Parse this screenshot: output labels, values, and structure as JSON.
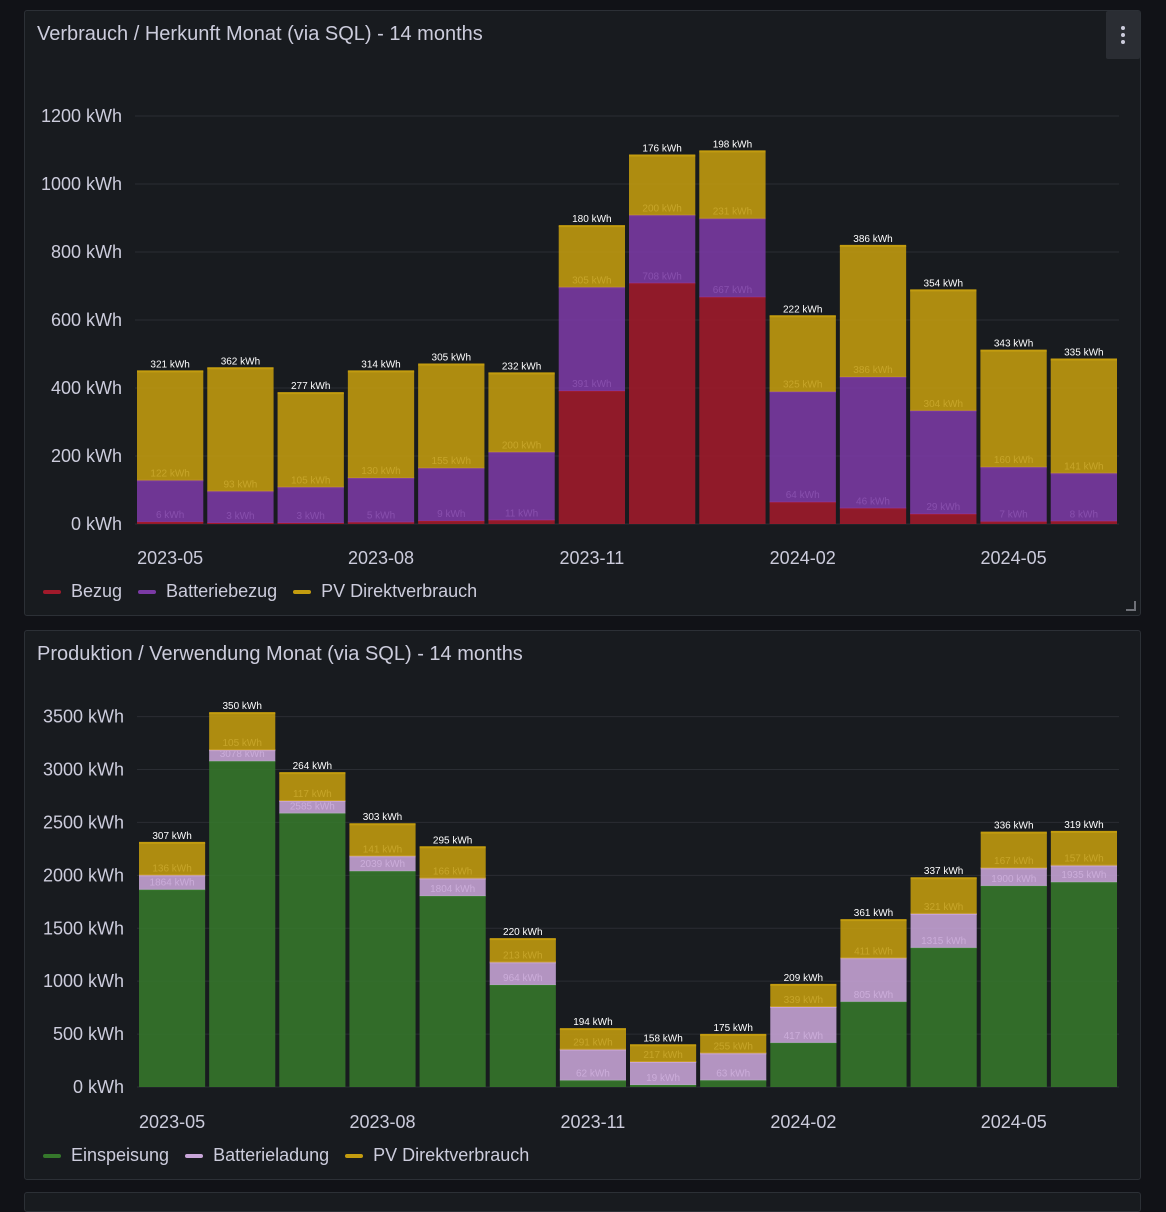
{
  "colors": {
    "bezug": "#a11a2b",
    "batteriebezug": "#7b3aa5",
    "pv_direkt": "#c39c0f",
    "einspeisung": "#35782b",
    "batterieladung": "#c8a5d8",
    "grid": "#2a2d33",
    "axis_text": "#ccccdc",
    "bar_label": "#ffffff"
  },
  "panel_menu_icon": "vertical-ellipsis-icon",
  "chart_data": [
    {
      "type": "bar",
      "stacked": true,
      "title": "Verbrauch / Herkunft Monat (via SQL) - 14 months",
      "unit": "kWh",
      "ylim": [
        0,
        1200
      ],
      "yticks": [
        0,
        200,
        400,
        600,
        800,
        1000,
        1200
      ],
      "ytick_labels": [
        "0 kWh",
        "200 kWh",
        "400 kWh",
        "600 kWh",
        "800 kWh",
        "1000 kWh",
        "1200 kWh"
      ],
      "categories": [
        "2023-05",
        "2023-06",
        "2023-07",
        "2023-08",
        "2023-09",
        "2023-10",
        "2023-11",
        "2023-12",
        "2024-01",
        "2024-02",
        "2024-03",
        "2024-04",
        "2024-05",
        "2024-06"
      ],
      "xtick_labels": [
        {
          "index": 0,
          "label": "2023-05"
        },
        {
          "index": 3,
          "label": "2023-08"
        },
        {
          "index": 6,
          "label": "2023-11"
        },
        {
          "index": 9,
          "label": "2024-02"
        },
        {
          "index": 12,
          "label": "2024-05"
        }
      ],
      "series": [
        {
          "name": "Bezug",
          "color_key": "bezug",
          "values": [
            6,
            3,
            3,
            5,
            9,
            11,
            391,
            708,
            667,
            64,
            46,
            29,
            7,
            8
          ]
        },
        {
          "name": "Batteriebezug",
          "color_key": "batteriebezug",
          "values": [
            122,
            93,
            105,
            130,
            155,
            200,
            305,
            200,
            231,
            325,
            386,
            304,
            160,
            141
          ]
        },
        {
          "name": "PV Direktverbrauch",
          "color_key": "pv_direkt",
          "values": [
            321,
            362,
            277,
            314,
            305,
            232,
            180,
            176,
            198,
            222,
            386,
            354,
            343,
            335
          ]
        }
      ],
      "legend": [
        "Bezug",
        "Batteriebezug",
        "PV Direktverbrauch"
      ],
      "legend_placement": "bottom-left"
    },
    {
      "type": "bar",
      "stacked": true,
      "title": "Produktion / Verwendung Monat (via SQL) - 14 months",
      "unit": "kWh",
      "ylim": [
        0,
        3600
      ],
      "yticks": [
        0,
        500,
        1000,
        1500,
        2000,
        2500,
        3000,
        3500
      ],
      "ytick_labels": [
        "0 kWh",
        "500 kWh",
        "1000 kWh",
        "1500 kWh",
        "2000 kWh",
        "2500 kWh",
        "3000 kWh",
        "3500 kWh"
      ],
      "categories": [
        "2023-05",
        "2023-06",
        "2023-07",
        "2023-08",
        "2023-09",
        "2023-10",
        "2023-11",
        "2023-12",
        "2024-01",
        "2024-02",
        "2024-03",
        "2024-04",
        "2024-05",
        "2024-06"
      ],
      "xtick_labels": [
        {
          "index": 0,
          "label": "2023-05"
        },
        {
          "index": 3,
          "label": "2023-08"
        },
        {
          "index": 6,
          "label": "2023-11"
        },
        {
          "index": 9,
          "label": "2024-02"
        },
        {
          "index": 12,
          "label": "2024-05"
        }
      ],
      "series": [
        {
          "name": "Einspeisung",
          "color_key": "einspeisung",
          "values": [
            1864,
            3078,
            2585,
            2039,
            1804,
            964,
            62,
            19,
            63,
            417,
            805,
            1315,
            1900,
            1935
          ]
        },
        {
          "name": "Batterieladung",
          "color_key": "batterieladung",
          "values": [
            136,
            105,
            117,
            141,
            166,
            213,
            291,
            217,
            255,
            339,
            411,
            321,
            167,
            157
          ]
        },
        {
          "name": "PV Direktverbrauch",
          "color_key": "pv_direkt",
          "values": [
            307,
            350,
            264,
            303,
            295,
            220,
            194,
            158,
            175,
            209,
            361,
            337,
            336,
            319
          ]
        }
      ],
      "legend": [
        "Einspeisung",
        "Batterieladung",
        "PV Direktverbrauch"
      ],
      "legend_placement": "bottom-left"
    }
  ]
}
